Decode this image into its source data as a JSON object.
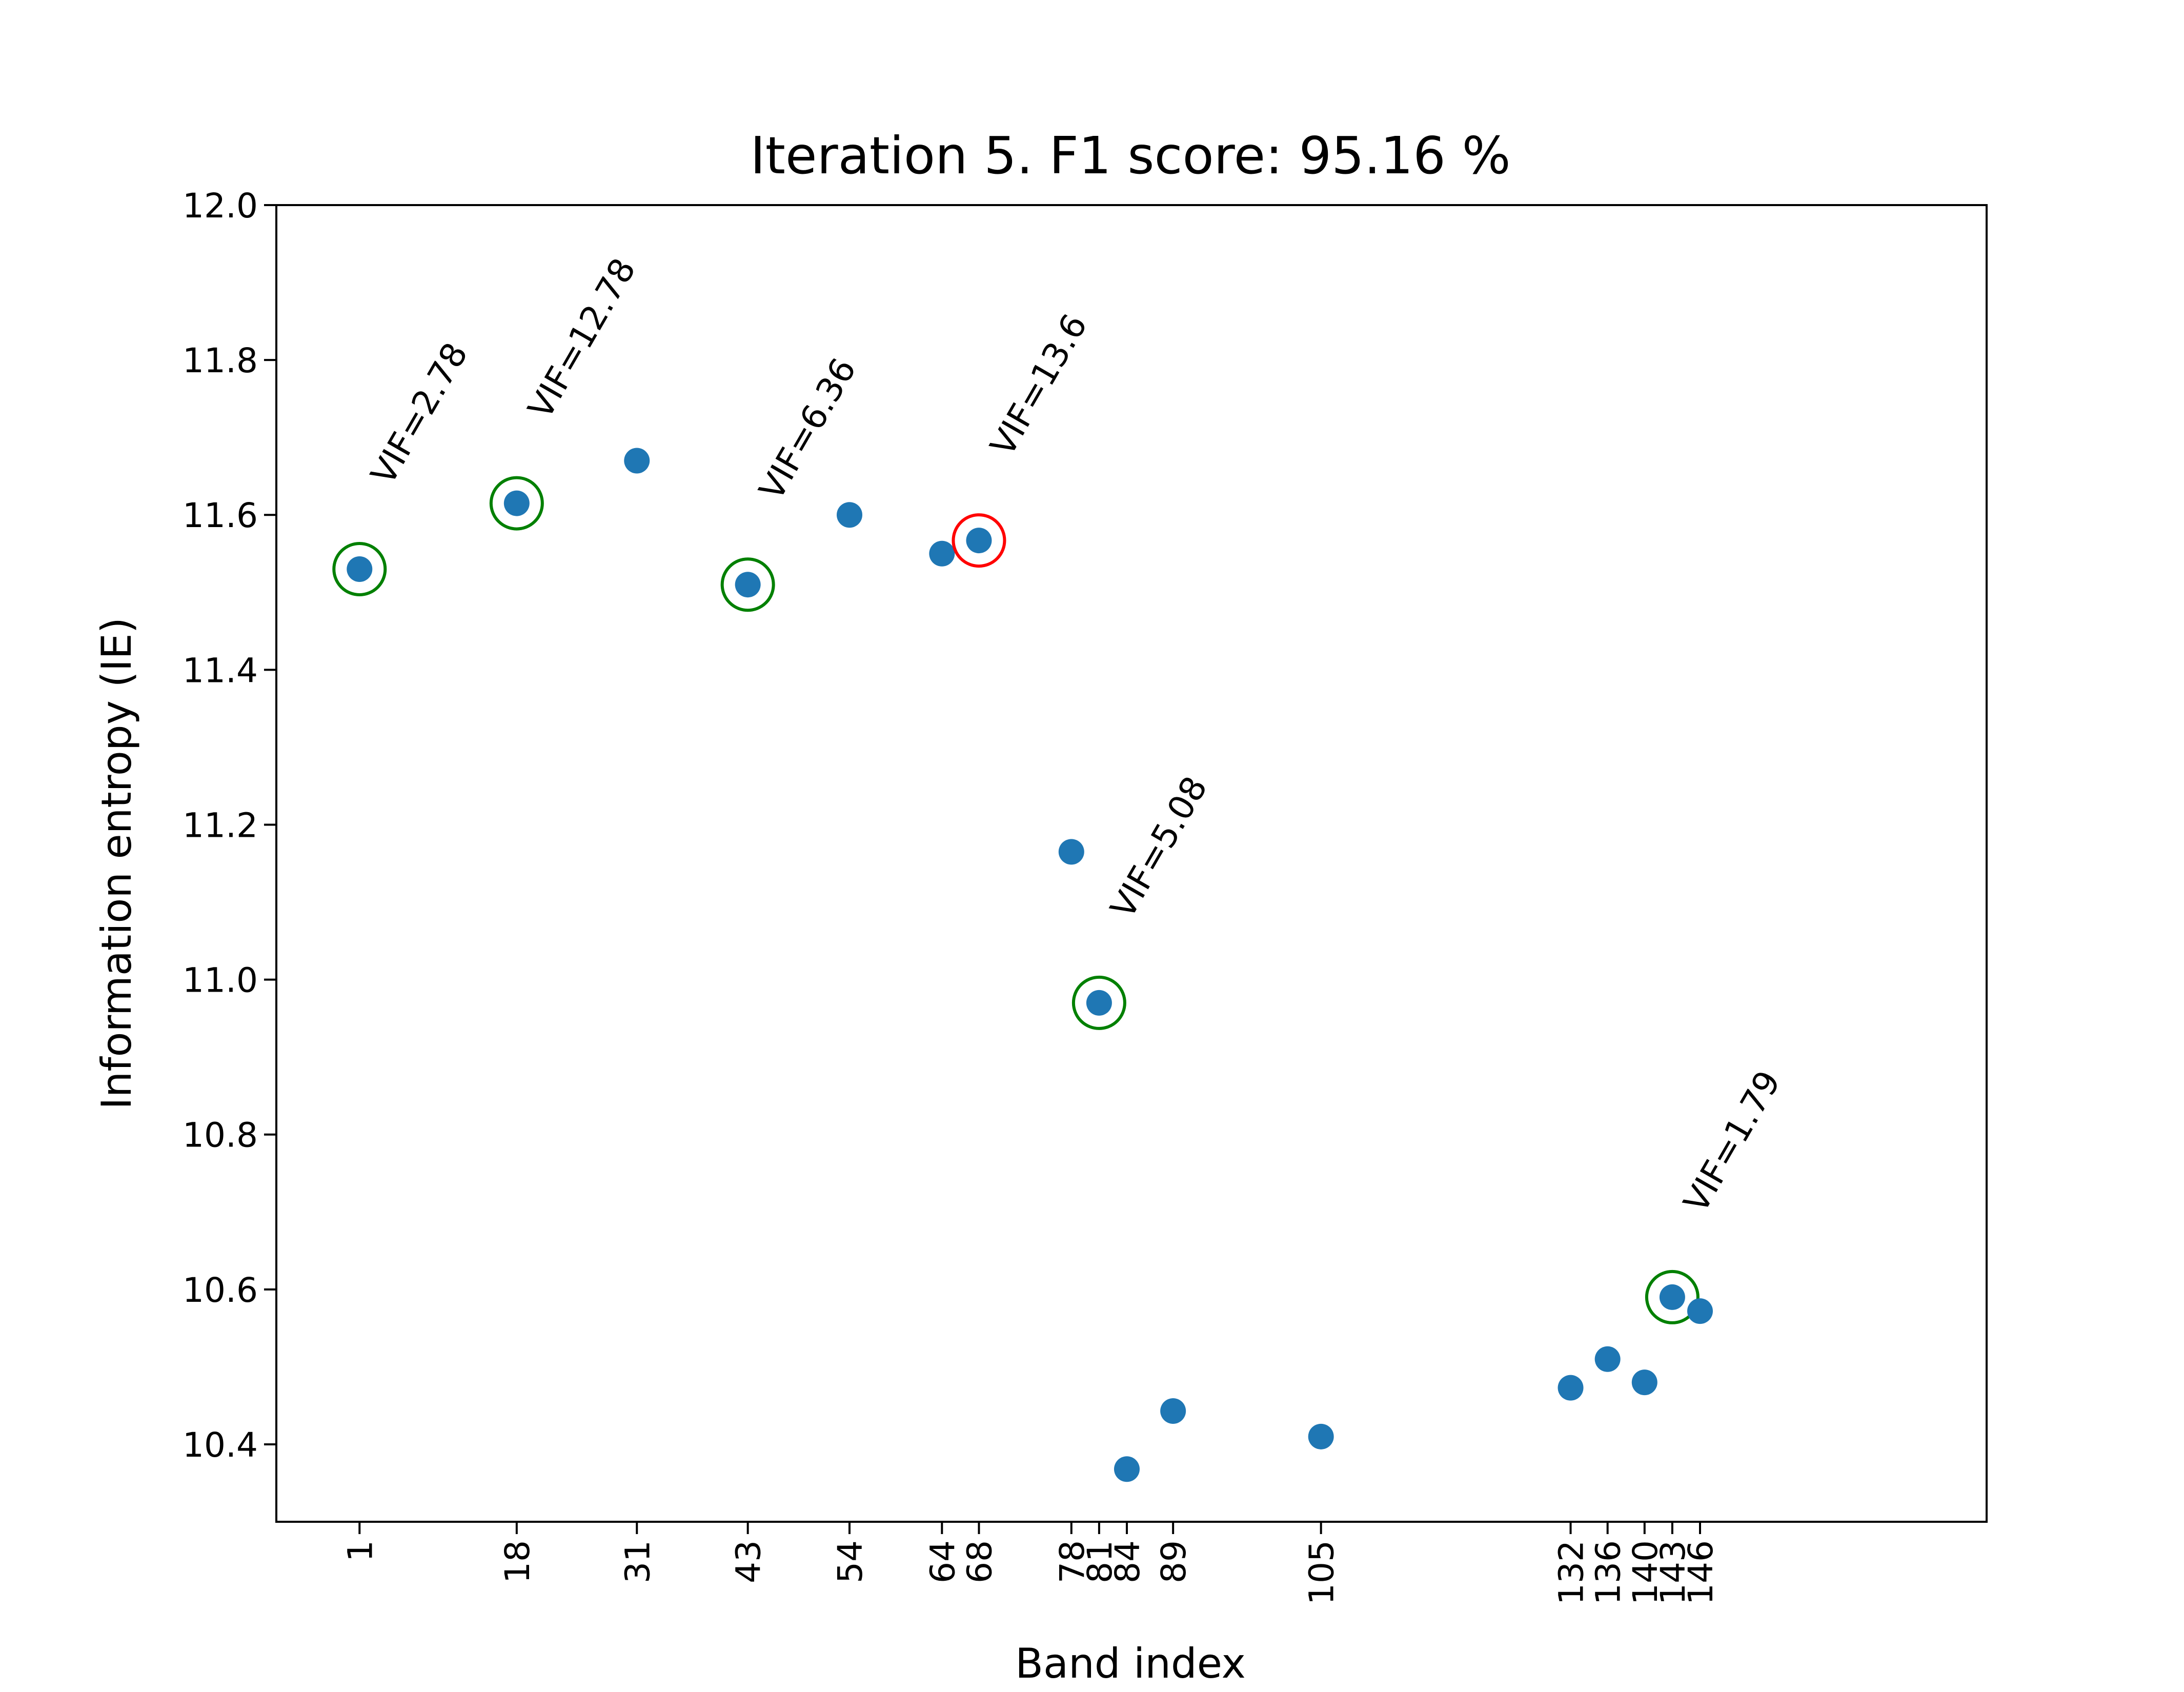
{
  "chart_data": {
    "type": "scatter",
    "title": "Iteration 5. F1 score: 95.16 %",
    "xlabel": "Band index",
    "ylabel": "Information entropy (IE)",
    "xlim": [
      -8,
      177
    ],
    "ylim": [
      10.3,
      12.0
    ],
    "yticks": [
      "10.4",
      "10.6",
      "10.8",
      "11.0",
      "11.2",
      "11.4",
      "11.6",
      "11.8",
      "12.0"
    ],
    "xticks": [
      "1",
      "18",
      "31",
      "43",
      "54",
      "64",
      "68",
      "78",
      "81",
      "84",
      "89",
      "105",
      "132",
      "136",
      "140",
      "143",
      "146"
    ],
    "point_color": "#1f77b4",
    "selected_color": "#008000",
    "rejected_color": "#ff0000",
    "points": [
      {
        "x": 1,
        "y": 11.53,
        "mark": "selected",
        "label": "VIF=2.78"
      },
      {
        "x": 18,
        "y": 11.615,
        "mark": "selected",
        "label": "VIF=12.78"
      },
      {
        "x": 31,
        "y": 11.67
      },
      {
        "x": 43,
        "y": 11.51,
        "mark": "selected",
        "label": "VIF=6.36"
      },
      {
        "x": 54,
        "y": 11.6
      },
      {
        "x": 64,
        "y": 11.55
      },
      {
        "x": 68,
        "y": 11.567,
        "mark": "rejected",
        "label": "VIF=13.6"
      },
      {
        "x": 78,
        "y": 11.165
      },
      {
        "x": 81,
        "y": 10.97,
        "mark": "selected",
        "label": "VIF=5.08"
      },
      {
        "x": 84,
        "y": 10.368
      },
      {
        "x": 89,
        "y": 10.443
      },
      {
        "x": 105,
        "y": 10.41
      },
      {
        "x": 132,
        "y": 10.473
      },
      {
        "x": 136,
        "y": 10.51
      },
      {
        "x": 140,
        "y": 10.48
      },
      {
        "x": 143,
        "y": 10.59,
        "mark": "selected",
        "label": "VIF=1.79"
      },
      {
        "x": 146,
        "y": 10.572
      }
    ]
  }
}
